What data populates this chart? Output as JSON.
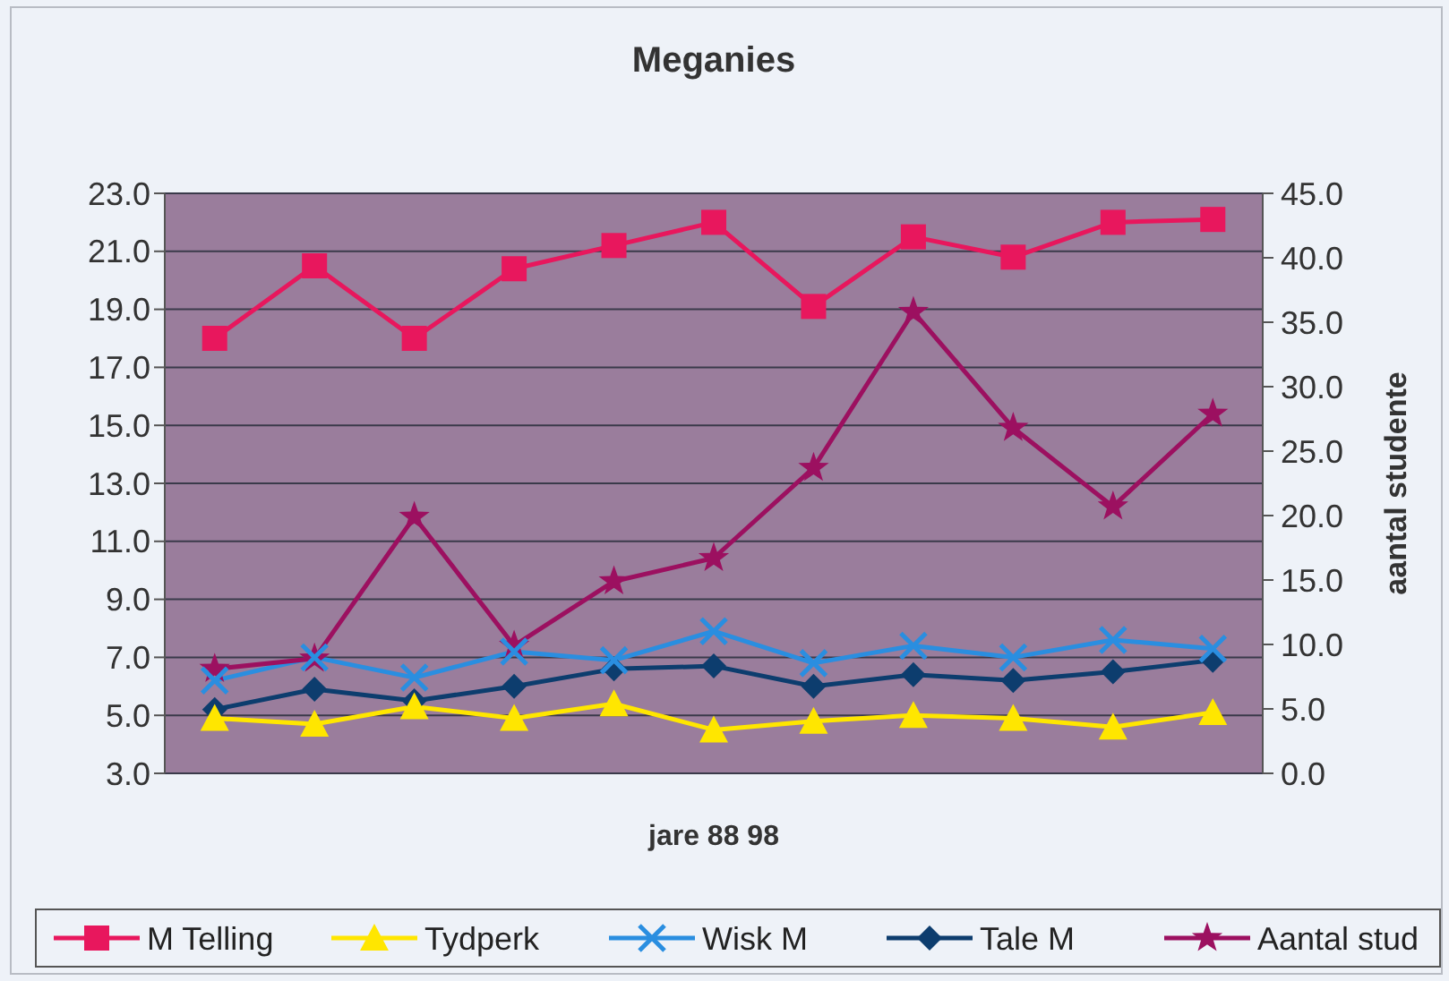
{
  "chart_data": {
    "type": "line",
    "title": "Meganies",
    "xlabel": "jare 88 98",
    "y2label": "aantal studente",
    "categories": [
      null,
      null,
      null,
      null,
      null,
      null,
      null,
      null,
      null,
      null,
      null
    ],
    "series": [
      {
        "name": "M Telling",
        "color": "#e8175d",
        "marker": "square",
        "values": [
          18.0,
          20.5,
          18.0,
          20.4,
          21.2,
          22.0,
          19.1,
          21.5,
          20.8,
          22.0,
          22.1
        ]
      },
      {
        "name": "Tydperk",
        "color": "#ffe600",
        "marker": "triangle",
        "values": [
          4.9,
          4.7,
          5.3,
          4.9,
          5.4,
          4.5,
          4.8,
          5.0,
          4.9,
          4.6,
          5.1
        ]
      },
      {
        "name": "Wisk M",
        "color": "#2a8ee0",
        "marker": "cross",
        "values": [
          6.2,
          7.0,
          6.3,
          7.2,
          6.9,
          7.9,
          6.8,
          7.4,
          7.0,
          7.6,
          7.3
        ]
      },
      {
        "name": "Tale M",
        "color": "#0d3d6e",
        "marker": "diamond",
        "values": [
          5.2,
          5.9,
          5.5,
          6.0,
          6.6,
          6.7,
          6.0,
          6.4,
          6.2,
          6.5,
          6.9
        ]
      },
      {
        "name": "Aantal stud",
        "color": "#9c1060",
        "marker": "star",
        "axis": "y2",
        "values": [
          8.1,
          8.9,
          19.9,
          9.9,
          14.9,
          16.7,
          23.7,
          35.8,
          26.8,
          20.7,
          27.9
        ]
      }
    ],
    "ylim": [
      3,
      23
    ],
    "yticks": [
      {
        "value": 3,
        "label": "3.0"
      },
      {
        "value": 5,
        "label": "5.0"
      },
      {
        "value": 7,
        "label": "7.0"
      },
      {
        "value": 9,
        "label": "9.0"
      },
      {
        "value": 11,
        "label": "11.0"
      },
      {
        "value": 13,
        "label": "13.0"
      },
      {
        "value": 15,
        "label": "15.0"
      },
      {
        "value": 17,
        "label": "17.0"
      },
      {
        "value": 19,
        "label": "19.0"
      },
      {
        "value": 21,
        "label": "21.0"
      },
      {
        "value": 23,
        "label": "23.0"
      }
    ],
    "y2lim": [
      0,
      45
    ],
    "y2ticks": [
      {
        "value": 0,
        "label": "0.0"
      },
      {
        "value": 5,
        "label": "5.0"
      },
      {
        "value": 10,
        "label": "10.0"
      },
      {
        "value": 15,
        "label": "15.0"
      },
      {
        "value": 20,
        "label": "20.0"
      },
      {
        "value": 25,
        "label": "25.0"
      },
      {
        "value": 30,
        "label": "30.0"
      },
      {
        "value": 35,
        "label": "35.0"
      },
      {
        "value": 40,
        "label": "40.0"
      },
      {
        "value": 45,
        "label": "45.0"
      }
    ],
    "grid": "y",
    "legend": "bottom",
    "tick_labels": "y",
    "line_style": "solid"
  }
}
